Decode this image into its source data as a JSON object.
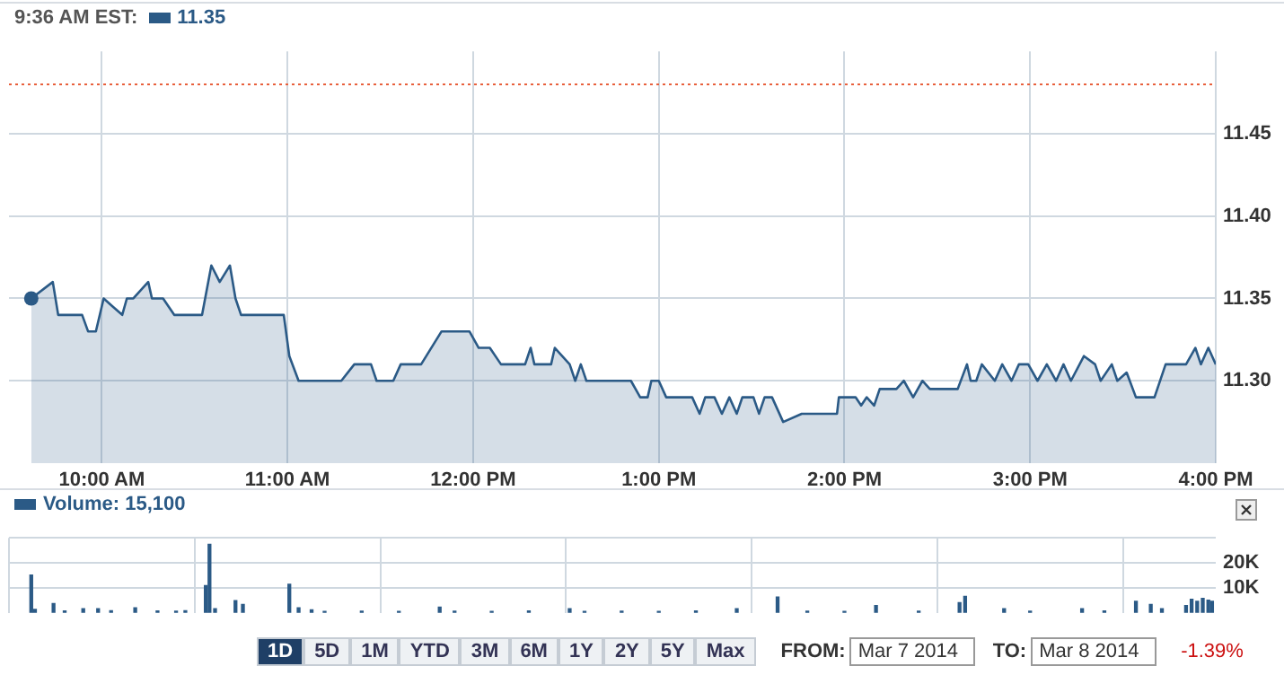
{
  "chart_data": [
    {
      "type": "area",
      "title": "9:36 AM EST:",
      "legend": "top left",
      "grid": true,
      "x": [
        9.62,
        9.736,
        9.765,
        9.894,
        9.926,
        9.968,
        10.01,
        10.06,
        10.11,
        10.135,
        10.17,
        10.25,
        10.27,
        10.33,
        10.39,
        10.54,
        10.59,
        10.635,
        10.69,
        10.72,
        10.75,
        10.98,
        11.01,
        11.06,
        11.29,
        11.36,
        11.45,
        11.48,
        11.57,
        11.61,
        11.72,
        11.83,
        11.98,
        12.03,
        12.09,
        12.15,
        12.28,
        12.31,
        12.33,
        12.42,
        12.44,
        12.52,
        12.55,
        12.58,
        12.61,
        12.85,
        12.9,
        12.94,
        12.96,
        13.0,
        13.04,
        13.18,
        13.22,
        13.25,
        13.3,
        13.34,
        13.38,
        13.42,
        13.45,
        13.51,
        13.54,
        13.57,
        13.61,
        13.67,
        13.77,
        13.96,
        13.97,
        14.06,
        14.09,
        14.12,
        14.16,
        14.19,
        14.28,
        14.32,
        14.37,
        14.42,
        14.46,
        14.61,
        14.66,
        14.68,
        14.71,
        14.74,
        14.81,
        14.85,
        14.9,
        14.94,
        14.99,
        15.04,
        15.09,
        15.14,
        15.18,
        15.22,
        15.29,
        15.35,
        15.38,
        15.44,
        15.47,
        15.52,
        15.57,
        15.67,
        15.73,
        15.76,
        15.81,
        15.84,
        15.89,
        15.92,
        15.96,
        16.0
      ],
      "series": [
        {
          "name": "11.35",
          "color": "#2b5a86",
          "values": [
            11.35,
            11.36,
            11.34,
            11.34,
            11.33,
            11.33,
            11.35,
            11.345,
            11.34,
            11.35,
            11.35,
            11.36,
            11.35,
            11.35,
            11.34,
            11.34,
            11.37,
            11.36,
            11.37,
            11.35,
            11.34,
            11.34,
            11.315,
            11.3,
            11.3,
            11.31,
            11.31,
            11.3,
            11.3,
            11.31,
            11.31,
            11.33,
            11.33,
            11.32,
            11.32,
            11.31,
            11.31,
            11.32,
            11.31,
            11.31,
            11.32,
            11.31,
            11.3,
            11.31,
            11.3,
            11.3,
            11.29,
            11.29,
            11.3,
            11.3,
            11.29,
            11.29,
            11.28,
            11.29,
            11.29,
            11.28,
            11.29,
            11.28,
            11.29,
            11.29,
            11.28,
            11.29,
            11.29,
            11.275,
            11.28,
            11.28,
            11.29,
            11.29,
            11.285,
            11.29,
            11.285,
            11.295,
            11.295,
            11.3,
            11.29,
            11.3,
            11.295,
            11.295,
            11.31,
            11.3,
            11.3,
            11.31,
            11.3,
            11.31,
            11.3,
            11.31,
            11.31,
            11.3,
            11.31,
            11.3,
            11.31,
            11.3,
            11.315,
            11.31,
            11.3,
            11.31,
            11.3,
            11.305,
            11.29,
            11.29,
            11.31,
            11.31,
            11.31,
            11.31,
            11.32,
            11.31,
            11.32,
            11.31
          ]
        }
      ],
      "xlim": [
        9.5,
        16
      ],
      "xticks": [
        {
          "value": 10,
          "label": "10:00 AM"
        },
        {
          "value": 11,
          "label": "11:00 AM"
        },
        {
          "value": 12,
          "label": "12:00 PM"
        },
        {
          "value": 13,
          "label": "1:00 PM"
        },
        {
          "value": 14,
          "label": "2:00 PM"
        },
        {
          "value": 15,
          "label": "3:00 PM"
        },
        {
          "value": 16,
          "label": "4:00 PM"
        }
      ],
      "ylim": [
        11.25,
        11.5
      ],
      "yticks": [
        {
          "value": 11.3,
          "label": "11.30"
        },
        11.35,
        {
          "value": 11.4,
          "label": "11.40"
        },
        11.45
      ],
      "ref_lines": [
        {
          "axis": "y",
          "value": 11.48,
          "color": "#e8603c",
          "line_style": "dotted"
        }
      ]
    },
    {
      "type": "bar",
      "legend": "top left",
      "grid": true,
      "tick_labels": "y",
      "x": [
        9.62,
        9.64,
        9.74,
        9.8,
        9.9,
        9.98,
        10.05,
        10.18,
        10.3,
        10.4,
        10.45,
        10.56,
        10.58,
        10.61,
        10.72,
        10.76,
        11.01,
        11.06,
        11.13,
        11.2,
        11.4,
        11.6,
        11.82,
        11.9,
        12.1,
        12.3,
        12.52,
        12.6,
        12.8,
        13.0,
        13.2,
        13.42,
        13.64,
        13.8,
        14.0,
        14.17,
        14.4,
        14.62,
        14.65,
        14.86,
        15.0,
        15.28,
        15.4,
        15.57,
        15.65,
        15.71,
        15.84,
        15.87,
        15.9,
        15.93,
        15.96,
        15.98
      ],
      "series": [
        {
          "name": "Volume: 15,100",
          "color": "#2b5a86",
          "values": [
            15100,
            1400,
            3700,
            800,
            1700,
            1700,
            900,
            2000,
            800,
            700,
            900,
            10900,
            27400,
            1700,
            4900,
            3400,
            11400,
            2000,
            1200,
            600,
            700,
            600,
            2300,
            700,
            600,
            800,
            1700,
            600,
            700,
            600,
            800,
            1700,
            6300,
            700,
            600,
            2900,
            700,
            4100,
            6600,
            1700,
            700,
            1700,
            800,
            4600,
            3400,
            1700,
            2900,
            5400,
            4600,
            5800,
            5100,
            4600
          ]
        }
      ],
      "xlim": [
        9.5,
        16
      ],
      "xticks": [
        {
          "value": 10,
          "label": null
        },
        {
          "value": 11,
          "label": null
        },
        {
          "value": 12,
          "label": null
        },
        {
          "value": 13,
          "label": null
        },
        {
          "value": 14,
          "label": null
        },
        {
          "value": 15,
          "label": null
        },
        {
          "value": 16,
          "label": null
        }
      ],
      "ylim": [
        0,
        30000
      ],
      "yticks": [
        {
          "value": 10000,
          "label": "10K"
        },
        {
          "value": 20000,
          "label": "20K"
        },
        {
          "value": 30000,
          "label": null
        }
      ],
      "annotations": [
        "1D",
        "5D",
        "1M",
        "YTD",
        "3M",
        "6M",
        "1Y",
        "2Y",
        "5Y",
        "Max",
        "FROM:",
        "Mar 7 2014",
        "TO:",
        "Mar 8 2014",
        "-1.39%"
      ]
    }
  ]
}
